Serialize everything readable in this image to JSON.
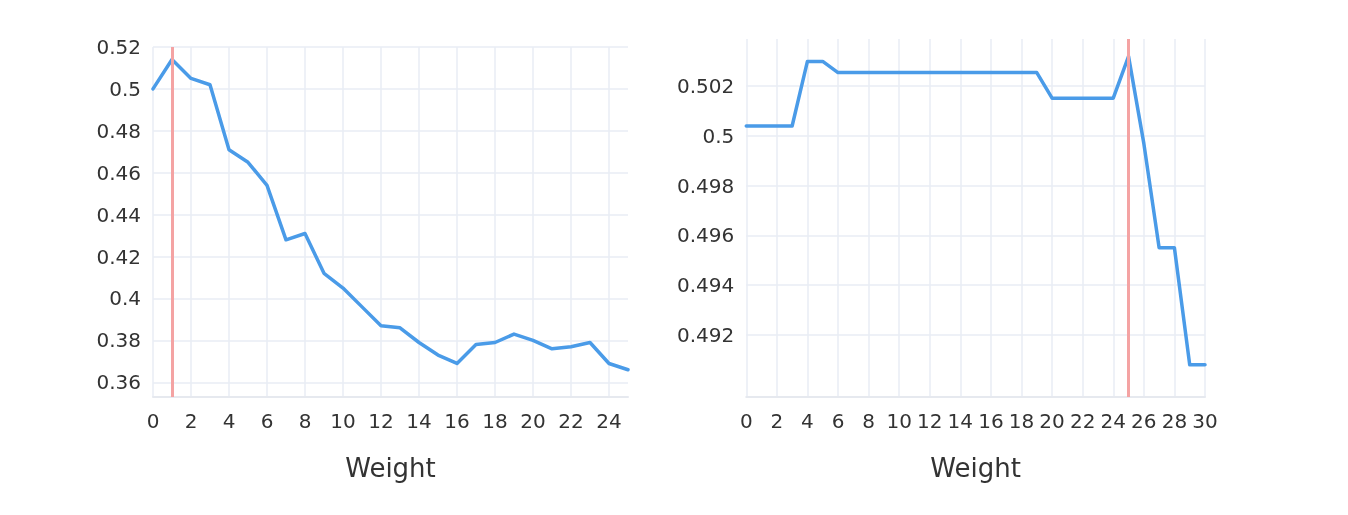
{
  "chart_data": [
    {
      "type": "line",
      "xlabel": "Weight",
      "x": [
        0,
        1,
        2,
        3,
        4,
        5,
        6,
        7,
        8,
        9,
        10,
        11,
        12,
        13,
        14,
        15,
        16,
        17,
        18,
        19,
        20,
        21,
        22,
        23,
        24,
        25
      ],
      "series": [
        {
          "color": "#4a9be8",
          "values": [
            0.5,
            0.514,
            0.505,
            0.502,
            0.471,
            0.465,
            0.454,
            0.428,
            0.431,
            0.412,
            0.405,
            0.396,
            0.387,
            0.386,
            0.379,
            0.373,
            0.369,
            0.378,
            0.379,
            0.383,
            0.38,
            0.376,
            0.377,
            0.379,
            0.369,
            0.366
          ]
        }
      ],
      "xlim": [
        0,
        25
      ],
      "xticks": [
        0,
        2,
        4,
        6,
        8,
        10,
        12,
        14,
        16,
        18,
        20,
        22,
        24
      ],
      "ylim": [
        0.353,
        0.52
      ],
      "yticks": [
        0.36,
        0.38,
        0.4,
        0.42,
        0.44,
        0.46,
        0.48,
        0.5,
        0.52
      ],
      "ref_lines": [
        {
          "axis": "x",
          "value": 1,
          "color": "#f4a3a3"
        }
      ],
      "grid": true,
      "marker": "none",
      "line_style": "solid"
    },
    {
      "type": "line",
      "xlabel": "Weight",
      "x": [
        0,
        1,
        2,
        3,
        4,
        5,
        6,
        7,
        8,
        9,
        10,
        11,
        12,
        13,
        14,
        15,
        16,
        17,
        18,
        19,
        20,
        21,
        22,
        23,
        24,
        25,
        26,
        27,
        28,
        29,
        30
      ],
      "series": [
        {
          "color": "#4a9be8",
          "values": [
            0.5004,
            0.5004,
            0.5004,
            0.5004,
            0.503,
            0.503,
            0.50255,
            0.50255,
            0.50255,
            0.50255,
            0.50255,
            0.50255,
            0.50255,
            0.50255,
            0.50255,
            0.50255,
            0.50255,
            0.50255,
            0.50255,
            0.50255,
            0.50152,
            0.50152,
            0.50152,
            0.50152,
            0.50152,
            0.5032,
            0.4997,
            0.4955,
            0.4955,
            0.4908,
            0.4908
          ]
        }
      ],
      "xlim": [
        0,
        30
      ],
      "xticks": [
        0,
        2,
        4,
        6,
        8,
        10,
        12,
        14,
        16,
        18,
        20,
        22,
        24,
        26,
        28,
        30
      ],
      "ylim": [
        0.4895,
        0.5039
      ],
      "yticks": [
        0.492,
        0.494,
        0.496,
        0.498,
        0.5,
        0.502
      ],
      "ref_lines": [
        {
          "axis": "x",
          "value": 25,
          "color": "#f4a3a3"
        }
      ],
      "grid": true,
      "marker": "none",
      "line_style": "solid"
    }
  ]
}
